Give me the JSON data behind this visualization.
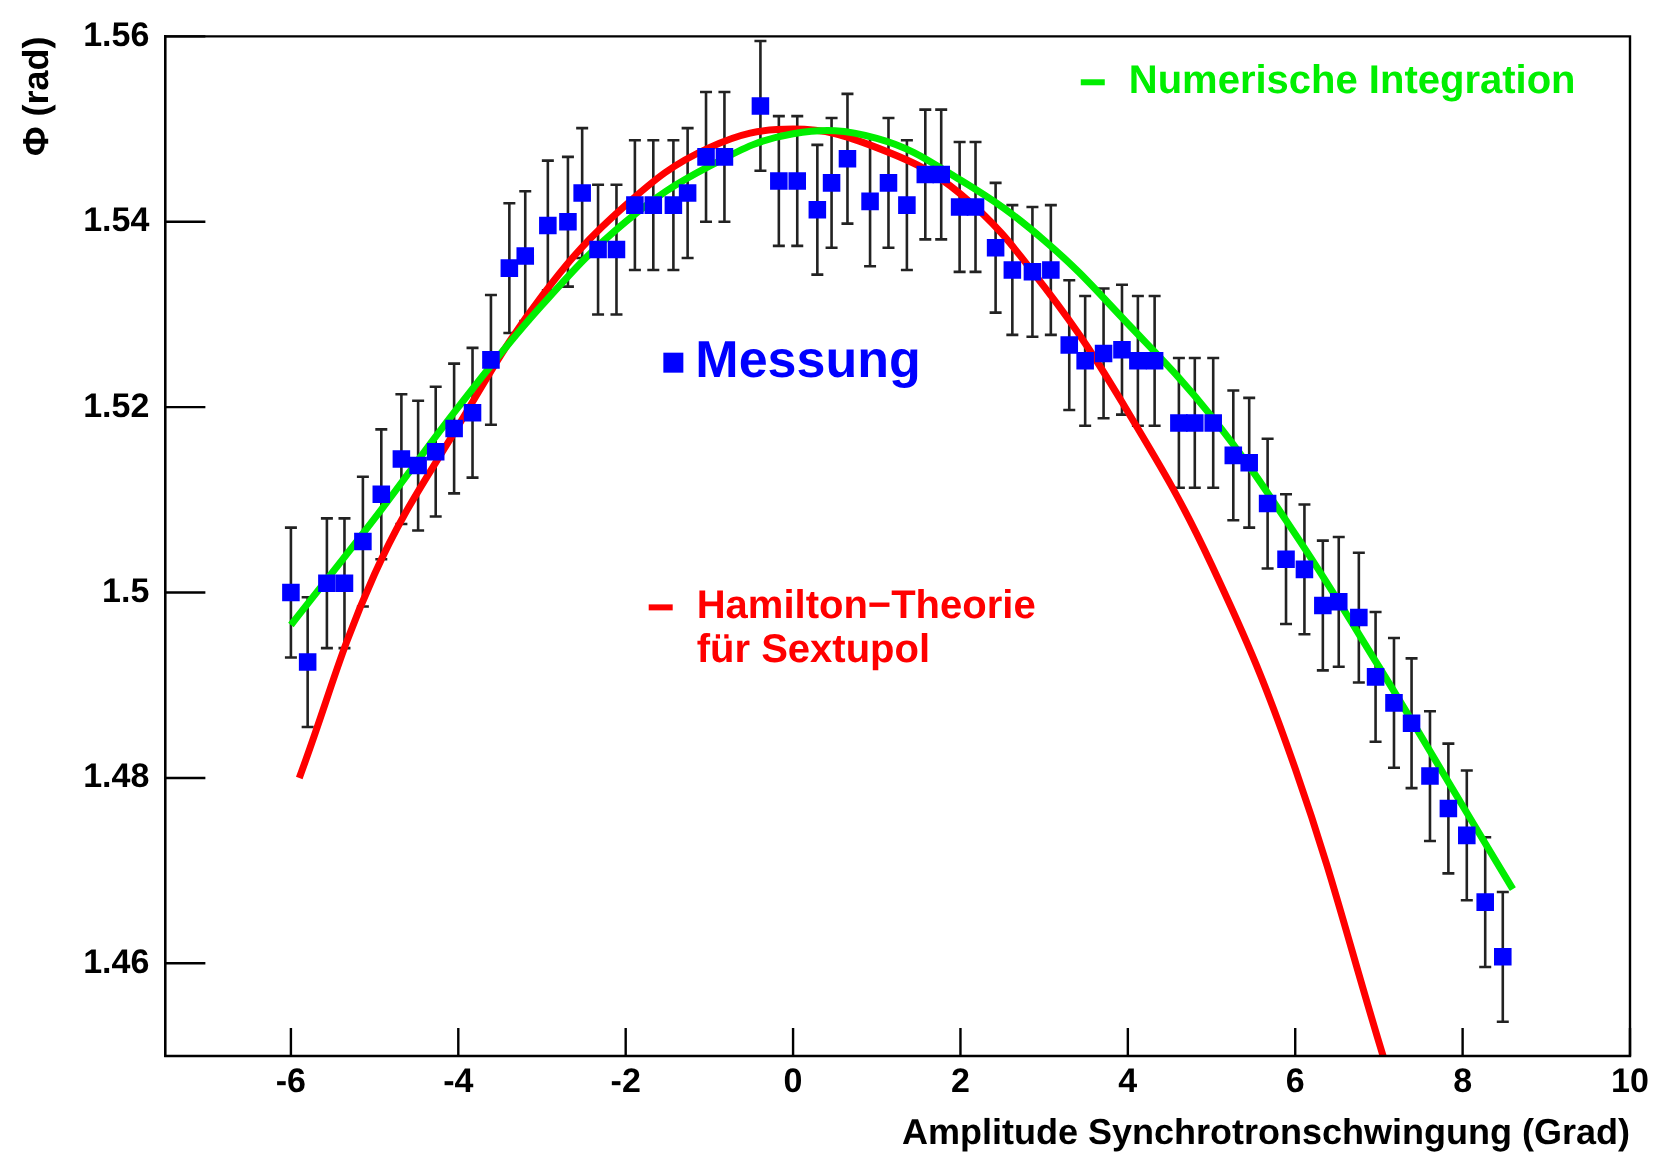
{
  "chart_data": {
    "type": "scatter",
    "xlabel": "Amplitude Synchrotronschwingung (Grad)",
    "ylabel": "Φ (rad)",
    "xlim": [
      -7.5,
      10
    ],
    "xticks": [
      -6,
      -4,
      -2,
      0,
      2,
      4,
      6,
      8,
      10
    ],
    "ylim": [
      1.45,
      1.56
    ],
    "yticks": [
      {
        "value": 1.46,
        "label": "1.46"
      },
      {
        "value": 1.48,
        "label": "1.48"
      },
      1.5,
      {
        "value": 1.52,
        "label": "1.52"
      },
      {
        "value": 1.54,
        "label": "1.54"
      },
      {
        "value": 1.56,
        "label": "1.56"
      }
    ],
    "grid": false,
    "legend": "top right",
    "series": [
      {
        "name": "Messung",
        "type": "scatter",
        "color": "#0000ff",
        "marker": "square",
        "x": [
          -6.0,
          -5.8,
          -5.57,
          -5.36,
          -5.14,
          -4.92,
          -4.68,
          -4.48,
          -4.27,
          -4.05,
          -3.83,
          -3.61,
          -3.39,
          -3.2,
          -2.93,
          -2.69,
          -2.52,
          -2.33,
          -2.11,
          -1.89,
          -1.67,
          -1.43,
          -1.26,
          -1.04,
          -0.82,
          -0.39,
          -0.17,
          0.05,
          0.29,
          0.46,
          0.65,
          0.92,
          1.14,
          1.36,
          1.58,
          1.77,
          1.99,
          2.18,
          2.42,
          2.62,
          2.86,
          3.08,
          3.3,
          3.49,
          3.71,
          3.93,
          4.12,
          4.32,
          4.61,
          4.8,
          5.02,
          5.26,
          5.45,
          5.67,
          5.89,
          6.11,
          6.33,
          6.52,
          6.76,
          6.96,
          7.18,
          7.39,
          7.61,
          7.83,
          8.05,
          8.27,
          8.48
        ],
        "values": [
          1.5,
          1.4925,
          1.501,
          1.501,
          1.5055,
          1.5106,
          1.5144,
          1.5137,
          1.5152,
          1.5177,
          1.5194,
          1.5251,
          1.535,
          1.5363,
          1.5396,
          1.54,
          1.5431,
          1.537,
          1.537,
          1.5418,
          1.5418,
          1.5418,
          1.5431,
          1.547,
          1.547,
          1.5525,
          1.5444,
          1.5444,
          1.5413,
          1.5442,
          1.5468,
          1.5422,
          1.5442,
          1.5418,
          1.5451,
          1.5451,
          1.5416,
          1.5416,
          1.5372,
          1.5348,
          1.5346,
          1.5348,
          1.5267,
          1.525,
          1.5258,
          1.5262,
          1.525,
          1.525,
          1.5183,
          1.5183,
          1.5183,
          1.5148,
          1.514,
          1.5096,
          1.5036,
          1.5025,
          1.4986,
          1.499,
          1.4973,
          1.4909,
          1.4881,
          1.4859,
          1.4802,
          1.4767,
          1.4738,
          1.4666,
          1.4607
        ],
        "errors": [
          0.007,
          0.007,
          0.007,
          0.007,
          0.007,
          0.007,
          0.007,
          0.007,
          0.007,
          0.007,
          0.007,
          0.007,
          0.007,
          0.007,
          0.007,
          0.007,
          0.007,
          0.007,
          0.007,
          0.007,
          0.007,
          0.007,
          0.007,
          0.007,
          0.007,
          0.007,
          0.007,
          0.007,
          0.007,
          0.007,
          0.007,
          0.007,
          0.007,
          0.007,
          0.007,
          0.007,
          0.007,
          0.007,
          0.007,
          0.007,
          0.007,
          0.007,
          0.007,
          0.007,
          0.007,
          0.007,
          0.007,
          0.007,
          0.007,
          0.007,
          0.007,
          0.007,
          0.007,
          0.007,
          0.007,
          0.007,
          0.007,
          0.007,
          0.007,
          0.007,
          0.007,
          0.007,
          0.007,
          0.007,
          0.007,
          0.007,
          0.007
        ]
      },
      {
        "name": "Numerische Integration",
        "type": "line",
        "color": "#00ee00",
        "marker": "none",
        "line_style": "solid",
        "x": [
          -6,
          -5,
          -4,
          -3,
          -2,
          -1,
          0,
          1,
          2,
          3,
          4,
          5,
          6,
          7,
          8,
          8.6
        ],
        "values": [
          1.4965,
          1.508,
          1.52,
          1.531,
          1.54,
          1.546,
          1.5495,
          1.549,
          1.5445,
          1.538,
          1.529,
          1.519,
          1.5063,
          1.492,
          1.477,
          1.468
        ]
      },
      {
        "name": "Hamilton−Theorie\nfür Sextupol",
        "type": "line",
        "color": "#ff0000",
        "marker": "none",
        "line_style": "solid",
        "x": [
          -5.9,
          -5,
          -4,
          -3,
          -2,
          -1,
          0,
          1,
          2,
          3,
          4,
          5,
          6,
          7.05
        ],
        "values": [
          1.48,
          1.502,
          1.518,
          1.532,
          1.5418,
          1.548,
          1.55,
          1.548,
          1.543,
          1.533,
          1.5195,
          1.503,
          1.481,
          1.45
        ]
      }
    ]
  }
}
